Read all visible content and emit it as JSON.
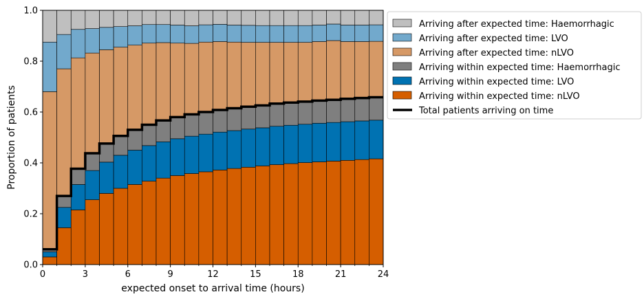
{
  "chart_data": {
    "type": "bar",
    "subtype": "stacked-step",
    "xlabel": "expected onset to arrival time (hours)",
    "ylabel": "Proportion of patients",
    "xlim": [
      0,
      24
    ],
    "ylim": [
      0,
      1
    ],
    "x_ticks": [
      "0",
      "3",
      "6",
      "9",
      "12",
      "15",
      "18",
      "21",
      "24"
    ],
    "y_ticks": [
      "0.0",
      "0.2",
      "0.4",
      "0.6",
      "0.8",
      "1.0"
    ],
    "grid": false,
    "legend_position": "outside-right-top",
    "bins": [
      0,
      1,
      2,
      3,
      4,
      5,
      6,
      7,
      8,
      9,
      10,
      11,
      12,
      13,
      14,
      15,
      16,
      17,
      18,
      19,
      20,
      21,
      22,
      23
    ],
    "bin_width": 1,
    "series": [
      {
        "name": "Arriving within expected time: nLVO",
        "color": "#d55e00",
        "values": [
          0.03,
          0.145,
          0.215,
          0.255,
          0.28,
          0.3,
          0.315,
          0.328,
          0.34,
          0.35,
          0.358,
          0.365,
          0.372,
          0.378,
          0.383,
          0.388,
          0.393,
          0.397,
          0.401,
          0.404,
          0.407,
          0.41,
          0.413,
          0.416
        ]
      },
      {
        "name": "Arriving within expected time: LVO",
        "color": "#0072b2",
        "values": [
          0.02,
          0.08,
          0.1,
          0.115,
          0.123,
          0.13,
          0.135,
          0.14,
          0.143,
          0.145,
          0.147,
          0.148,
          0.149,
          0.149,
          0.15,
          0.15,
          0.151,
          0.151,
          0.151,
          0.152,
          0.152,
          0.152,
          0.152,
          0.152
        ]
      },
      {
        "name": "Arriving within expected time: Haemorrhagic",
        "color": "#7f7f7f",
        "values": [
          0.01,
          0.045,
          0.062,
          0.068,
          0.073,
          0.076,
          0.08,
          0.082,
          0.084,
          0.085,
          0.086,
          0.087,
          0.087,
          0.088,
          0.088,
          0.088,
          0.089,
          0.089,
          0.089,
          0.089,
          0.089,
          0.09,
          0.09,
          0.09
        ]
      },
      {
        "name": "Arriving after expected time: nLVO",
        "color": "#d69966",
        "values": [
          0.62,
          0.5,
          0.436,
          0.394,
          0.369,
          0.349,
          0.333,
          0.321,
          0.306,
          0.291,
          0.279,
          0.275,
          0.269,
          0.26,
          0.253,
          0.248,
          0.241,
          0.237,
          0.233,
          0.232,
          0.233,
          0.225,
          0.222,
          0.22
        ]
      },
      {
        "name": "Arriving after expected time: LVO",
        "color": "#72a9cc",
        "values": [
          0.195,
          0.135,
          0.112,
          0.096,
          0.088,
          0.081,
          0.076,
          0.073,
          0.071,
          0.071,
          0.069,
          0.068,
          0.068,
          0.067,
          0.067,
          0.066,
          0.066,
          0.066,
          0.066,
          0.065,
          0.065,
          0.065,
          0.065,
          0.065
        ]
      },
      {
        "name": "Arriving after expected time: Haemorrhagic",
        "color": "#bfbfbf",
        "values": [
          0.125,
          0.095,
          0.075,
          0.072,
          0.067,
          0.064,
          0.061,
          0.056,
          0.056,
          0.058,
          0.061,
          0.057,
          0.055,
          0.058,
          0.059,
          0.06,
          0.06,
          0.06,
          0.06,
          0.058,
          0.054,
          0.058,
          0.058,
          0.057
        ]
      }
    ],
    "line_series": {
      "name": "Total patients arriving on time",
      "color": "#000000",
      "values": [
        0.06,
        0.27,
        0.377,
        0.438,
        0.476,
        0.506,
        0.53,
        0.55,
        0.567,
        0.58,
        0.591,
        0.6,
        0.608,
        0.615,
        0.621,
        0.626,
        0.633,
        0.637,
        0.641,
        0.645,
        0.648,
        0.652,
        0.655,
        0.658
      ]
    },
    "legend_order": [
      "Arriving after expected time: Haemorrhagic",
      "Arriving after expected time: LVO",
      "Arriving after expected time: nLVO",
      "Arriving within expected time: Haemorrhagic",
      "Arriving within expected time: LVO",
      "Arriving within expected time: nLVO",
      "Total patients arriving on time"
    ]
  }
}
